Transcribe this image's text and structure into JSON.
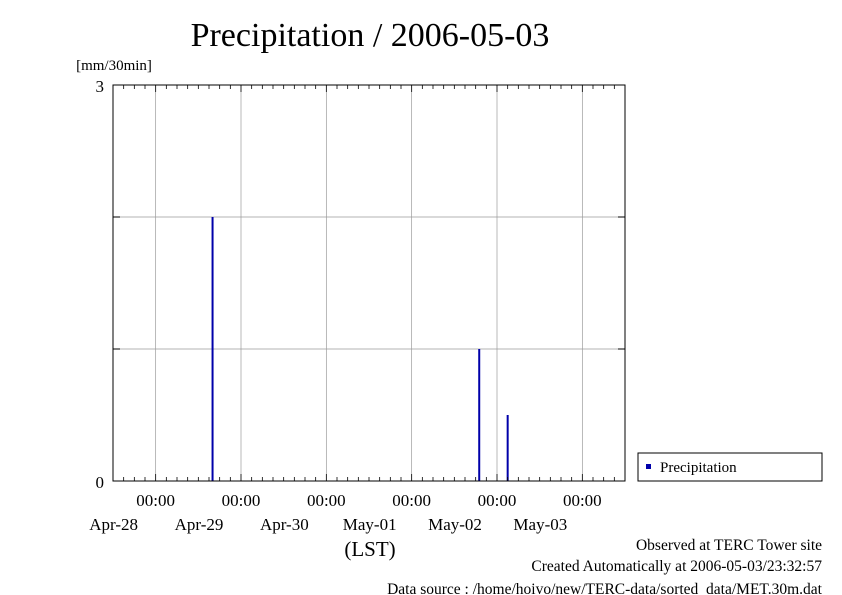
{
  "chart_data": {
    "type": "bar",
    "title": "Precipitation / 2006-05-03",
    "ylabel": "[mm/30min]",
    "xlabel": "(LST)",
    "ylim": [
      0,
      3
    ],
    "y_ticks": [
      "0",
      "3"
    ],
    "x_range": [
      "2006-04-27 12:00",
      "2006-05-03 12:00"
    ],
    "x_ticks": [
      {
        "time": "00:00",
        "date": "Apr-28"
      },
      {
        "time": "00:00",
        "date": "Apr-29"
      },
      {
        "time": "00:00",
        "date": "Apr-30"
      },
      {
        "time": "00:00",
        "date": "May-01"
      },
      {
        "time": "00:00",
        "date": "May-02"
      },
      {
        "time": "00:00",
        "date": "May-03"
      }
    ],
    "grid": true,
    "legend_position": "right",
    "series": [
      {
        "name": "Precipitation",
        "color": "#0000aa",
        "points": [
          {
            "t": "2006-04-28 16:00",
            "value": 2.0
          },
          {
            "t": "2006-05-01 19:00",
            "value": 1.0
          },
          {
            "t": "2006-05-02 03:00",
            "value": 0.5
          }
        ]
      }
    ]
  },
  "footer": {
    "line1": "Observed at TERC Tower site",
    "line2": "Created Automatically at 2006-05-03/23:32:57",
    "line3": "Data source : /home/hoivo/new/TERC-data/sorted_data/MET.30m.dat"
  }
}
